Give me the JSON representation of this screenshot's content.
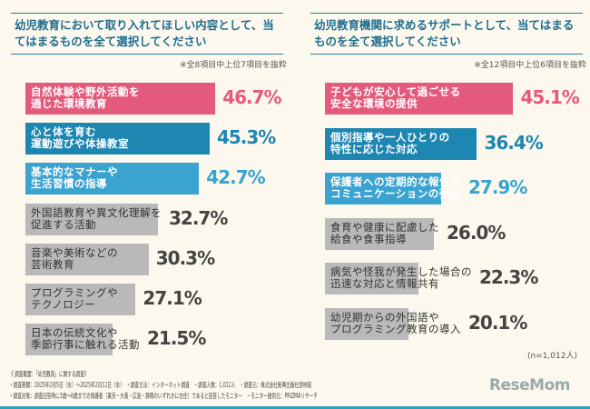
{
  "chart_data": [
    {
      "type": "bar",
      "orientation": "horizontal",
      "title": "幼児教育において取り入れてほしい内容として、当てはまるものを全て選択してください",
      "note": "※全8項目中上位7項目を抜粋",
      "categories": [
        "自然体験や野外活動を\n通じた環境教育",
        "心と体を育む\n運動遊びや体操教室",
        "基本的なマナーや\n生活習慣の指導",
        "外国語教育や異文化理解を\n促進する活動",
        "音楽や美術などの\n芸術教育",
        "プログラミングや\nテクノロジー",
        "日本の伝統文化や\n季節行事に触れる活動"
      ],
      "values": [
        46.7,
        45.3,
        42.7,
        32.7,
        30.3,
        27.1,
        21.5
      ],
      "value_labels": [
        "46.7%",
        "45.3%",
        "42.7%",
        "32.7%",
        "30.3%",
        "27.1%",
        "21.5%"
      ],
      "colors": [
        "#e45a7c",
        "#1d86b1",
        "#3aa3cf",
        "#b9b9b9",
        "#b9b9b9",
        "#b9b9b9",
        "#b9b9b9"
      ],
      "value_colors": [
        "#e45a7c",
        "#1d86b1",
        "#3aa3cf",
        "#444444",
        "#444444",
        "#444444",
        "#444444"
      ]
    },
    {
      "type": "bar",
      "orientation": "horizontal",
      "title": "幼児教育機関に求めるサポートとして、当てはまるものを全て選択してください",
      "note": "※全12項目中上位6項目を抜粋",
      "categories": [
        "子どもが安心して過ごせる\n安全な環境の提供",
        "個別指導や一人ひとりの\n特性に応じた対応",
        "保護者への定期的な報告や\nコミュニケーションの強化",
        "食育や健康に配慮した\n給食や食事指導",
        "病気や怪我が発生した場合の\n迅速な対応と情報共有",
        "幼児期からの外国語や\nプログラミング教育の導入"
      ],
      "values": [
        45.1,
        36.4,
        27.9,
        26.0,
        22.3,
        20.1
      ],
      "value_labels": [
        "45.1%",
        "36.4%",
        "27.9%",
        "26.0%",
        "22.3%",
        "20.1%"
      ],
      "colors": [
        "#e45a7c",
        "#1d86b1",
        "#3aa3cf",
        "#b9b9b9",
        "#b9b9b9",
        "#b9b9b9"
      ],
      "value_colors": [
        "#e45a7c",
        "#1d86b1",
        "#3aa3cf",
        "#444444",
        "#444444",
        "#444444"
      ]
    }
  ],
  "sample": "(n=1,012人)",
  "footer": [
    "《 調査概要：「幼児教育」に関する調査》",
    "・調査期間：2025年2月5日（水）～2025年2月12日（水）　・調査方法：インターネット調査　・調査人数：1,012人　・調査元：株式会社新興出版社啓林館",
    "・調査対象：調査回答時に3歳～6歳までの保護者（東京・大阪・広島・静岡のいずれかに在住）であると回答したモニター　・モニター提供元：PRIZMAリサーチ"
  ],
  "logo": "ReseMom"
}
